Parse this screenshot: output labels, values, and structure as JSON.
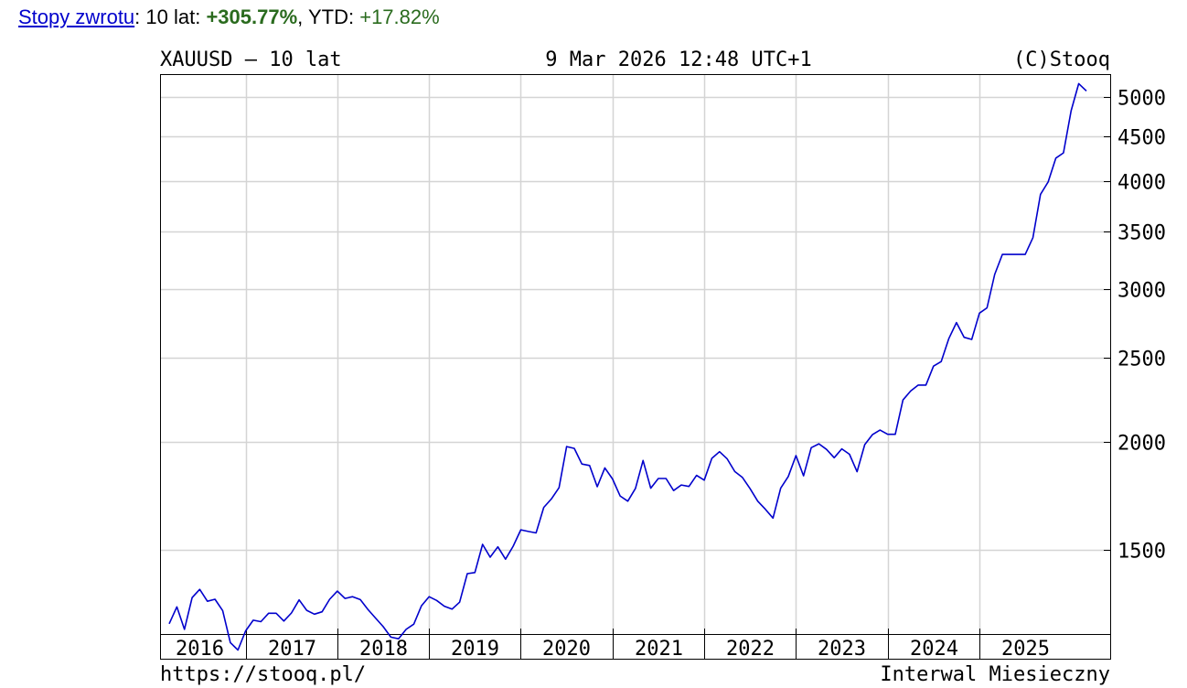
{
  "header": {
    "link_label": "Stopy zwrotu",
    "sep1": ": ",
    "period_label": "10 lat: ",
    "period_return": "+305.77%",
    "sep2": ", ",
    "ytd_label": "YTD: ",
    "ytd_return": "+17.82%",
    "colors": {
      "link": "#0000cc",
      "positive": "#2a6b1e"
    }
  },
  "chart_data": {
    "type": "line",
    "title": "XAUUSD – 10 lat",
    "timestamp": "9 Mar 2026 12:48 UTC+1",
    "copyright": "(C)Stooq",
    "footer_left": "https://stooq.pl/",
    "footer_right": "Interwal Miesieczny",
    "y_scale": "log",
    "ylim": [
      1200,
      5300
    ],
    "y_ticks": [
      1500,
      2000,
      2500,
      3000,
      3500,
      4000,
      4500,
      5000
    ],
    "x_ticks": [
      "2016",
      "2017",
      "2018",
      "2019",
      "2020",
      "2021",
      "2022",
      "2023",
      "2024",
      "2025"
    ],
    "x_start": "2016-03",
    "grid": true,
    "line_color": "#0000cc",
    "series": [
      {
        "values": [
          1233,
          1290,
          1215,
          1322,
          1351,
          1309,
          1316,
          1277,
          1173,
          1150,
          1210,
          1245,
          1240,
          1268,
          1268,
          1242,
          1269,
          1314,
          1278,
          1265,
          1273,
          1316,
          1345,
          1319,
          1325,
          1315,
          1281,
          1252,
          1224,
          1190,
          1185,
          1215,
          1232,
          1293,
          1325,
          1312,
          1292,
          1282,
          1306,
          1409,
          1413,
          1523,
          1472,
          1513,
          1464,
          1515,
          1583,
          1576,
          1570,
          1680,
          1718,
          1770,
          1975,
          1965,
          1885,
          1878,
          1775,
          1866,
          1812,
          1732,
          1708,
          1767,
          1903,
          1768,
          1814,
          1814,
          1757,
          1783,
          1776,
          1829,
          1806,
          1914,
          1948,
          1911,
          1848,
          1819,
          1766,
          1708,
          1672,
          1633,
          1768,
          1824,
          1928,
          1827,
          1969,
          1989,
          1960,
          1917,
          1963,
          1935,
          1847,
          1985,
          2038,
          2063,
          2040,
          2040,
          2235,
          2289,
          2325,
          2325,
          2445,
          2475,
          2630,
          2745,
          2640,
          2625,
          2815,
          2855,
          3120,
          3290,
          3290,
          3290,
          3290,
          3440,
          3860,
          3990,
          4250,
          4310,
          4820,
          5180,
          5080
        ]
      }
    ]
  }
}
